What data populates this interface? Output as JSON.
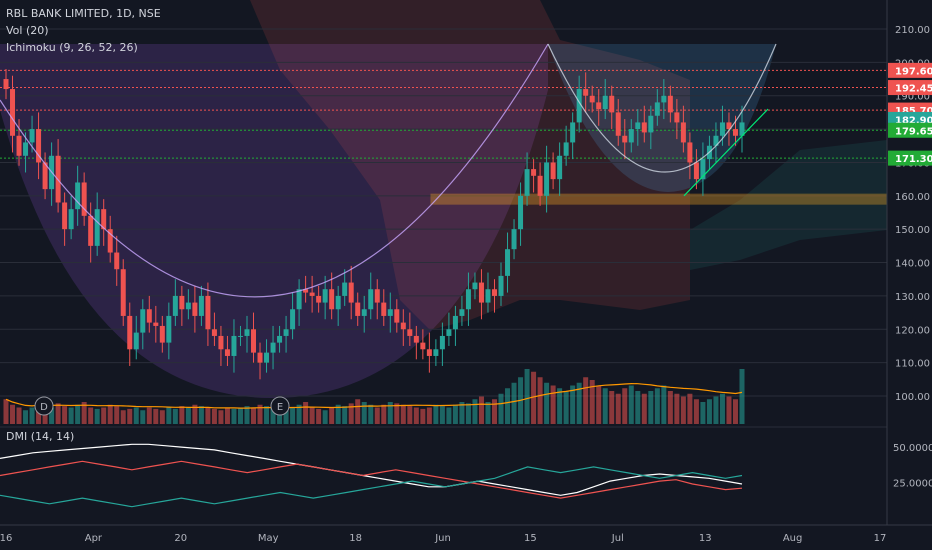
{
  "legend": {
    "title": "RBL BANK LIMITED, 1D, NSE",
    "vol": "Vol (20)",
    "ichimoku": "Ichimoku (9, 26, 52, 26)",
    "dmi": "DMI (14, 14)"
  },
  "chart_data": [
    {
      "type": "candlestick",
      "title": "RBL BANK LIMITED, 1D, NSE",
      "ylim": [
        95,
        212
      ],
      "y_ticks": [
        "210.00",
        "200.00",
        "190.00",
        "180.00",
        "170.00",
        "160.00",
        "150.00",
        "140.00",
        "130.00",
        "120.00",
        "110.00",
        "100.00"
      ],
      "x_ticks": [
        "16",
        "Apr",
        "20",
        "May",
        "18",
        "Jun",
        "15",
        "Jul",
        "13",
        "Aug",
        "17"
      ],
      "price_badges": [
        {
          "label": "197.60",
          "color": "#ef5350"
        },
        {
          "label": "192.45",
          "color": "#ef5350"
        },
        {
          "label": "185.70",
          "color": "#ef5350"
        },
        {
          "label": "182.90",
          "color": "#26a69a"
        },
        {
          "label": "179.65",
          "color": "#22ab36"
        },
        {
          "label": "171.30",
          "color": "#22ab36"
        }
      ],
      "horizontal_levels": [
        {
          "value": 197.6,
          "color": "#ef5350"
        },
        {
          "value": 192.45,
          "color": "#ef5350"
        },
        {
          "value": 185.7,
          "color": "#ef5350"
        },
        {
          "value": 179.65,
          "color": "#22ab36"
        },
        {
          "value": 171.3,
          "color": "#22ab36"
        }
      ],
      "support_zone": [
        157.5,
        160.5
      ],
      "event_markers": [
        "D",
        "E"
      ],
      "closes": [
        192,
        178,
        172,
        176,
        180,
        170,
        162,
        172,
        158,
        150,
        156,
        164,
        154,
        145,
        156,
        150,
        143,
        138,
        124,
        114,
        119,
        126,
        122,
        121,
        116,
        124,
        130,
        126,
        128,
        124,
        130,
        120,
        118,
        114,
        112,
        118,
        118,
        120,
        113,
        110,
        113,
        116,
        118,
        120,
        126,
        132,
        131,
        130,
        128,
        132,
        126,
        130,
        134,
        128,
        124,
        126,
        132,
        128,
        124,
        126,
        122,
        120,
        118,
        116,
        114,
        112,
        114,
        118,
        120,
        124,
        126,
        132,
        134,
        128,
        132,
        130,
        136,
        144,
        150,
        160,
        168,
        166,
        160,
        170,
        165,
        172,
        176,
        182,
        192,
        190,
        188,
        186,
        190,
        185,
        178,
        176,
        180,
        182,
        179,
        184,
        188,
        190,
        185,
        182,
        176,
        170,
        165,
        171,
        175,
        178,
        182,
        180,
        178,
        182
      ],
      "volume": [
        18,
        14,
        12,
        10,
        12,
        16,
        14,
        12,
        15,
        13,
        12,
        14,
        16,
        12,
        11,
        12,
        14,
        13,
        10,
        11,
        12,
        10,
        12,
        11,
        10,
        12,
        11,
        13,
        12,
        14,
        13,
        12,
        11,
        10,
        12,
        11,
        12,
        13,
        12,
        14,
        13,
        12,
        11,
        10,
        12,
        14,
        16,
        12,
        11,
        10,
        12,
        14,
        13,
        15,
        18,
        16,
        14,
        12,
        14,
        16,
        15,
        14,
        13,
        12,
        11,
        12,
        14,
        13,
        12,
        14,
        16,
        15,
        18,
        20,
        16,
        18,
        22,
        26,
        30,
        34,
        40,
        38,
        34,
        30,
        28,
        26,
        24,
        28,
        30,
        34,
        32,
        28,
        26,
        24,
        22,
        26,
        28,
        24,
        22,
        24,
        26,
        28,
        24,
        22,
        20,
        22,
        18,
        16,
        18,
        20,
        22,
        20,
        18,
        40
      ],
      "dmi_series": [
        {
          "color": "#ffffff",
          "values": [
            42,
            44,
            46,
            47,
            48,
            49,
            50,
            51,
            52,
            52,
            51,
            50,
            49,
            48,
            46,
            44,
            42,
            40,
            38,
            36,
            34,
            32,
            30,
            28,
            26,
            24,
            22,
            22,
            24,
            26,
            24,
            22,
            20,
            18,
            16,
            18,
            22,
            26,
            28,
            30,
            31,
            30,
            29,
            28,
            26,
            24
          ]
        },
        {
          "color": "#ef5350",
          "values": [
            30,
            32,
            34,
            36,
            38,
            40,
            38,
            36,
            34,
            36,
            38,
            40,
            38,
            36,
            34,
            32,
            34,
            36,
            38,
            36,
            34,
            32,
            30,
            32,
            34,
            32,
            30,
            28,
            26,
            24,
            22,
            20,
            18,
            16,
            14,
            16,
            18,
            20,
            22,
            24,
            26,
            27,
            24,
            22,
            20,
            21
          ]
        },
        {
          "color": "#26a69a",
          "values": [
            16,
            14,
            12,
            10,
            12,
            14,
            12,
            10,
            8,
            10,
            12,
            14,
            12,
            10,
            12,
            14,
            16,
            18,
            16,
            14,
            16,
            18,
            20,
            22,
            24,
            26,
            24,
            22,
            24,
            26,
            28,
            32,
            36,
            34,
            32,
            34,
            36,
            34,
            32,
            30,
            28,
            30,
            32,
            30,
            28,
            30
          ]
        }
      ],
      "dmi_ticks": [
        "50.0000",
        "25.0000"
      ]
    }
  ]
}
